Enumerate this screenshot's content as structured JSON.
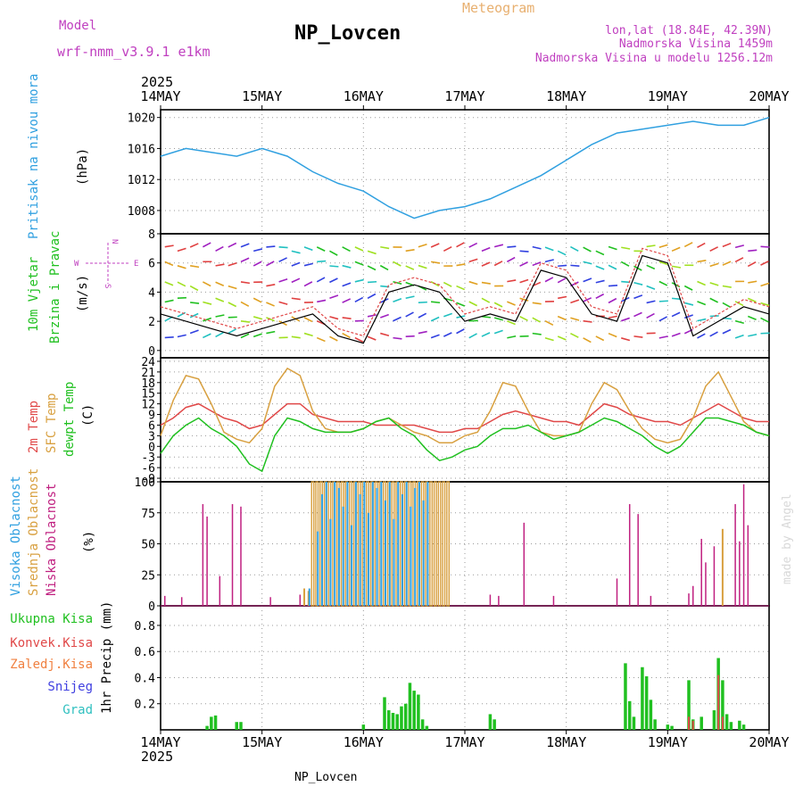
{
  "header": {
    "model_label": "Model",
    "model_name": "wrf-nmm_v3.9.1 e1km",
    "title": "NP_Lovcen",
    "product": "Meteogram",
    "coords": "lon,lat (18.84E, 42.39N)",
    "altitude": "Nadmorska Visina 1459m",
    "model_altitude": "Nadmorska Visina u modelu 1256.12m",
    "year": "2025",
    "footer_title": "NP_Lovcen",
    "credit": "made by Angel"
  },
  "colors": {
    "magenta_text": "#c040c0",
    "orange_text": "#e8b070",
    "pressure": "#30a0e0",
    "t2m": "#e04848",
    "tsfc": "#d8a040",
    "dewpt": "#20c020",
    "cloud_high": "#30a0e0",
    "cloud_mid": "#d8a040",
    "cloud_low": "#c02080",
    "rain_total": "#20c020",
    "rain_conv": "#e04848",
    "rain_frz": "#f08040",
    "snow": "#4040e0",
    "hail": "#30c0c0"
  },
  "chart_data": {
    "type": "meteogram",
    "x_axis": {
      "ticks": [
        "14MAY",
        "15MAY",
        "16MAY",
        "17MAY",
        "18MAY",
        "19MAY",
        "20MAY"
      ],
      "start": "2025-05-14T00:00",
      "end": "2025-05-20T00:00",
      "hours_per_tick": 24,
      "year_label": "2025"
    },
    "panels": [
      {
        "id": "pressure",
        "type": "line",
        "ylabel": "(hPa)",
        "side_label": "Pritisak na nivou mora",
        "ylim": [
          1005,
          1021
        ],
        "yticks": [
          1008,
          1012,
          1016,
          1020
        ],
        "series": [
          {
            "x": [
              0,
              6,
              12,
              18,
              24,
              30,
              36,
              42,
              48,
              54,
              60,
              66,
              72,
              78,
              84,
              90,
              96,
              102,
              108,
              114,
              120,
              126,
              132,
              138,
              144
            ],
            "values": [
              1015.0,
              1016.0,
              1015.5,
              1015.0,
              1016.0,
              1015.0,
              1013.0,
              1011.5,
              1010.5,
              1008.5,
              1007.0,
              1008.0,
              1008.5,
              1009.5,
              1011.0,
              1012.5,
              1014.5,
              1016.5,
              1018.0,
              1018.5,
              1019.0,
              1019.5,
              1019.0,
              1019.0,
              1020.0
            ]
          }
        ]
      },
      {
        "id": "wind",
        "type": "line",
        "ylabel": "(m/s)",
        "side_label_1": "10m Vjetar",
        "side_label_2": "Brzina i Pravac",
        "compass": {
          "n": "N",
          "s": "S",
          "w": "W",
          "e": "E"
        },
        "ylim": [
          -0.5,
          8
        ],
        "yticks": [
          0,
          2,
          4,
          6,
          8
        ],
        "series": [
          {
            "x": [
              0,
              6,
              12,
              18,
              24,
              30,
              36,
              42,
              48,
              54,
              60,
              66,
              72,
              78,
              84,
              90,
              96,
              102,
              108,
              114,
              120,
              126,
              132,
              138,
              144
            ],
            "values": [
              2.5,
              2.0,
              1.5,
              1.0,
              1.5,
              2.0,
              2.5,
              1.0,
              0.5,
              4.0,
              4.5,
              4.0,
              2.0,
              2.5,
              2.0,
              5.5,
              5.0,
              2.5,
              2.0,
              6.5,
              6.0,
              1.0,
              2.0,
              3.0,
              2.5
            ]
          }
        ]
      },
      {
        "id": "temperature",
        "type": "line",
        "ylabel": "(C)",
        "side_label_1": "2m Temp",
        "side_label_2": "SFC Temp",
        "side_label_3": "dewpt Temp",
        "ylim": [
          -10,
          25
        ],
        "yticks": [
          -9,
          -6,
          -3,
          0,
          3,
          6,
          9,
          12,
          15,
          18,
          21,
          24
        ],
        "x": [
          0,
          3,
          6,
          9,
          12,
          15,
          18,
          21,
          24,
          27,
          30,
          33,
          36,
          39,
          42,
          45,
          48,
          51,
          54,
          57,
          60,
          63,
          66,
          69,
          72,
          75,
          78,
          81,
          84,
          87,
          90,
          93,
          96,
          99,
          102,
          105,
          108,
          111,
          114,
          117,
          120,
          123,
          126,
          129,
          132,
          135,
          138,
          141,
          144
        ],
        "series": [
          {
            "name": "2m Temp",
            "values": [
              6,
              8,
              11,
              12,
              10,
              8,
              7,
              5,
              6,
              9,
              12,
              12,
              9,
              8,
              7,
              7,
              7,
              6,
              6,
              6,
              6,
              5,
              4,
              4,
              5,
              5,
              7,
              9,
              10,
              9,
              8,
              7,
              7,
              6,
              9,
              12,
              11,
              9,
              8,
              7,
              7,
              6,
              8,
              10,
              12,
              10,
              8,
              7,
              7
            ]
          },
          {
            "name": "SFC Temp",
            "values": [
              3,
              13,
              20,
              19,
              12,
              4,
              2,
              1,
              5,
              17,
              22,
              20,
              10,
              5,
              4,
              4,
              5,
              7,
              8,
              6,
              4,
              3,
              1,
              1,
              3,
              4,
              10,
              18,
              17,
              10,
              4,
              3,
              3,
              4,
              12,
              18,
              16,
              10,
              5,
              2,
              1,
              2,
              8,
              17,
              21,
              14,
              7,
              4,
              3
            ]
          },
          {
            "name": "dewpt Temp",
            "values": [
              -2,
              3,
              6,
              8,
              5,
              3,
              0,
              -5,
              -7,
              3,
              8,
              7,
              5,
              4,
              4,
              4,
              5,
              7,
              8,
              5,
              3,
              -1,
              -4,
              -3,
              -1,
              0,
              3,
              5,
              5,
              6,
              4,
              2,
              3,
              4,
              6,
              8,
              7,
              5,
              3,
              0,
              -2,
              0,
              4,
              8,
              8,
              7,
              6,
              4,
              3
            ]
          }
        ]
      },
      {
        "id": "clouds",
        "type": "bar",
        "ylabel": "(%)",
        "side_label_1": "Visoka Oblacnost",
        "side_label_2": "Srednja Oblacnost",
        "side_label_3": "Niska Oblacnost",
        "ylim": [
          0,
          100
        ],
        "yticks": [
          0,
          25,
          50,
          75,
          100
        ],
        "low": {
          "x": [
            1,
            5,
            10,
            11,
            14,
            17,
            19,
            20,
            26,
            33,
            78,
            80,
            86,
            93,
            108,
            111,
            113,
            116,
            125,
            126,
            128,
            129,
            131,
            136,
            137,
            138,
            139
          ],
          "values": [
            8,
            7,
            82,
            72,
            24,
            82,
            80,
            0,
            7,
            9,
            9,
            8,
            67,
            8,
            22,
            82,
            74,
            8,
            10,
            16,
            54,
            35,
            48,
            82,
            52,
            98,
            65
          ]
        },
        "mid": {
          "x_start": 36,
          "x_end": 68,
          "step": 1,
          "value": 100,
          "extra": {
            "x": [
              34,
              35,
              133
            ],
            "values": [
              14,
              12,
              62
            ]
          }
        },
        "high": {
          "x_start": 37,
          "x_end": 63,
          "step": 1,
          "values": [
            60,
            90,
            100,
            70,
            100,
            95,
            80,
            100,
            65,
            100,
            90,
            100,
            75,
            100,
            95,
            100,
            85,
            100,
            70,
            100,
            90,
            100,
            80,
            95,
            100,
            85,
            100
          ],
          "extra": {
            "x": [
              35
            ],
            "values": [
              14
            ]
          }
        }
      },
      {
        "id": "precip",
        "type": "bar",
        "ylabel": "1hr Precip (mm)",
        "side_label_1": "Ukupna Kisa",
        "side_label_2": "Konvek.Kisa",
        "side_label_3": "Zaledj.Kisa",
        "side_label_4": "Snijeg",
        "side_label_5": "Grad",
        "ylim": [
          0,
          0.95
        ],
        "yticks": [
          0.2,
          0.4,
          0.6,
          0.8
        ],
        "total": {
          "x": [
            11,
            12,
            13,
            18,
            19,
            48,
            53,
            54,
            55,
            56,
            57,
            58,
            59,
            60,
            61,
            62,
            63,
            78,
            79,
            110,
            111,
            112,
            114,
            115,
            116,
            117,
            120,
            121,
            125,
            126,
            128,
            131,
            132,
            133,
            134,
            135,
            137,
            138
          ],
          "values": [
            0.03,
            0.1,
            0.11,
            0.06,
            0.06,
            0.04,
            0.25,
            0.15,
            0.13,
            0.12,
            0.18,
            0.2,
            0.36,
            0.3,
            0.27,
            0.08,
            0.03,
            0.12,
            0.08,
            0.51,
            0.22,
            0.1,
            0.48,
            0.41,
            0.23,
            0.08,
            0.04,
            0.03,
            0.38,
            0.08,
            0.1,
            0.15,
            0.55,
            0.38,
            0.12,
            0.06,
            0.07,
            0.04
          ]
        },
        "conv": {
          "x": [
            125,
            126,
            132,
            133
          ],
          "values": [
            0.1,
            0.07,
            0.42,
            0.1
          ]
        }
      }
    ]
  }
}
